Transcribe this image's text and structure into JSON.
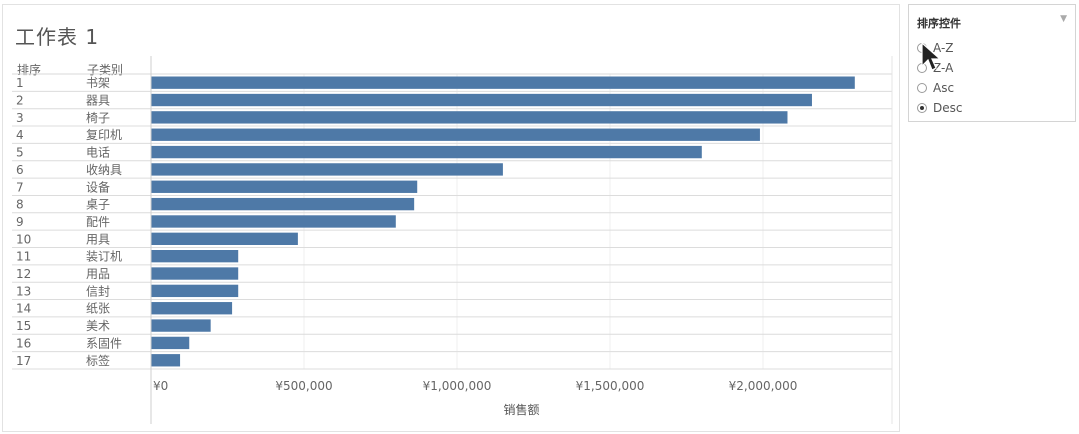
{
  "sheet": {
    "title": "工作表 1",
    "col_rank": "排序",
    "col_category": "子类别"
  },
  "controls": {
    "title": "排序控件",
    "options": [
      {
        "label": "A-Z",
        "selected": false
      },
      {
        "label": "Z-A",
        "selected": false
      },
      {
        "label": "Asc",
        "selected": false
      },
      {
        "label": "Desc",
        "selected": true
      }
    ]
  },
  "chart_data": {
    "type": "bar",
    "orientation": "horizontal",
    "xlabel": "销售额",
    "xlim": [
      0,
      2400000
    ],
    "xticks": [
      0,
      500000,
      1000000,
      1500000,
      2000000
    ],
    "xtick_labels": [
      "¥0",
      "¥500,000",
      "¥1,000,000",
      "¥1,500,000",
      "¥2,000,000"
    ],
    "bar_color": "#4e79a7",
    "grid": true,
    "ranks": [
      "1",
      "2",
      "3",
      "4",
      "5",
      "6",
      "7",
      "8",
      "9",
      "10",
      "11",
      "12",
      "13",
      "14",
      "15",
      "16",
      "17"
    ],
    "categories": [
      "书架",
      "器具",
      "椅子",
      "复印机",
      "电话",
      "收纳具",
      "设备",
      "桌子",
      "配件",
      "用具",
      "装订机",
      "用品",
      "信封",
      "纸张",
      "美术",
      "系固件",
      "标签"
    ],
    "values": [
      2300000,
      2160000,
      2080000,
      1990000,
      1800000,
      1150000,
      870000,
      860000,
      800000,
      480000,
      285000,
      285000,
      285000,
      265000,
      195000,
      125000,
      95000
    ]
  }
}
